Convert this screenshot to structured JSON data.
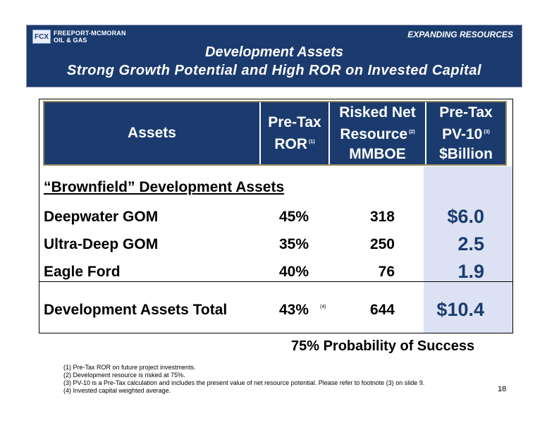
{
  "banner": {
    "logo_mark": "FCX",
    "logo_line1": "FREEPORT-MCMORAN",
    "logo_line2": "OIL & GAS",
    "tagline": "EXPANDING RESOURCES",
    "title": "Development Assets",
    "subtitle": "Strong Growth Potential and High ROR on Invested Capital",
    "bg_color": "#1b3b6f"
  },
  "table": {
    "headers": {
      "assets": "Assets",
      "ror_line1": "Pre-Tax",
      "ror_line2": "ROR",
      "ror_fn": "(1)",
      "res_line1": "Risked Net",
      "res_line2": "Resource",
      "res_fn": "(2)",
      "res_line3": "MMBOE",
      "pv_line1": "Pre-Tax",
      "pv_line2": "PV-10",
      "pv_fn": "(3)",
      "pv_line3": "$Billion"
    },
    "section_title": "“Brownfield” Development Assets",
    "rows": [
      {
        "asset": "Deepwater GOM",
        "ror": "45%",
        "resource": "318",
        "pv": "$6.0"
      },
      {
        "asset": "Ultra-Deep GOM",
        "ror": "35%",
        "resource": "250",
        "pv": "2.5"
      },
      {
        "asset": "Eagle Ford",
        "ror": "40%",
        "resource": "76",
        "pv": "1.9"
      }
    ],
    "total": {
      "asset": "Development Assets Total",
      "ror": "43%",
      "ror_fn": "(4)",
      "resource": "644",
      "pv": "$10.4"
    }
  },
  "probability": "75%  Probability of Success",
  "footnotes": [
    "(1) Pre-Tax ROR on future project investments.",
    "(2) Development resource is risked at 75%.",
    "(3) PV-10 is a Pre-Tax calculation and includes the present value of net resource potential. Please refer to footnote (3) on slide 9.",
    "(4) Invested capital weighted average."
  ],
  "page_number": "18"
}
